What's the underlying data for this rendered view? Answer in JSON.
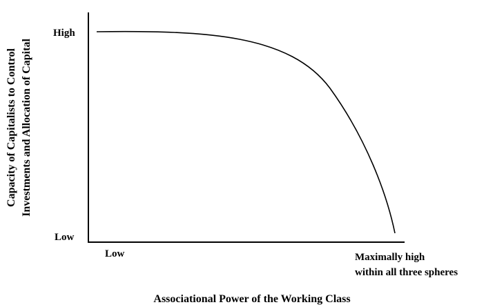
{
  "y_axis": {
    "title": [
      "Capacity of Capitalists to Control",
      "Investments and Allocation of Capital"
    ],
    "high_label": "High",
    "low_label": "Low"
  },
  "x_axis": {
    "title": "Associational Power of the Working Class",
    "low_label": "Low",
    "high_label": [
      "Maximally high",
      "within all three spheres"
    ]
  }
}
